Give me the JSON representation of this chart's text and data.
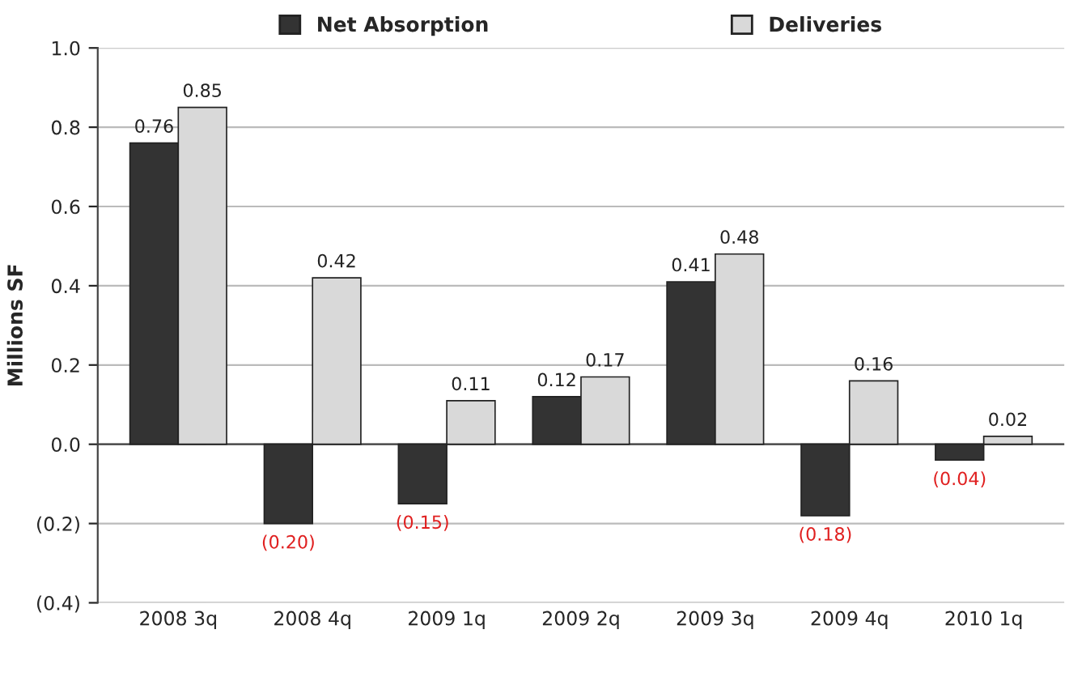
{
  "chart_data": {
    "type": "bar",
    "ylabel": "Millions SF",
    "categories": [
      "2008 3q",
      "2008 4q",
      "2009 1q",
      "2009 2q",
      "2009 3q",
      "2009 4q",
      "2010 1q"
    ],
    "series": [
      {
        "name": "Net Absorption",
        "color": "#333333",
        "values": [
          0.76,
          -0.2,
          -0.15,
          0.12,
          0.41,
          -0.18,
          -0.04
        ],
        "value_labels": [
          "0.76",
          "(0.20)",
          "(0.15)",
          "0.12",
          "0.41",
          "(0.18)",
          "(0.04)"
        ]
      },
      {
        "name": "Deliveries",
        "color": "#d9d9d9",
        "values": [
          0.85,
          0.42,
          0.11,
          0.17,
          0.48,
          0.16,
          0.02
        ],
        "value_labels": [
          "0.85",
          "0.42",
          "0.11",
          "0.17",
          "0.48",
          "0.16",
          "0.02"
        ]
      }
    ],
    "ylim": [
      -0.4,
      1.0
    ],
    "yticks": [
      {
        "value": -0.4,
        "label": "(0.4)"
      },
      {
        "value": -0.2,
        "label": "(0.2)"
      },
      {
        "value": 0,
        "label": "0.0"
      },
      {
        "value": 0.2,
        "label": "0.2"
      },
      {
        "value": 0.4,
        "label": "0.4"
      },
      {
        "value": 0.6,
        "label": "0.6"
      },
      {
        "value": 0.8,
        "label": "0.8"
      },
      {
        "value": 1.0,
        "label": "1.0"
      }
    ],
    "grid": "y",
    "legend": "top"
  }
}
